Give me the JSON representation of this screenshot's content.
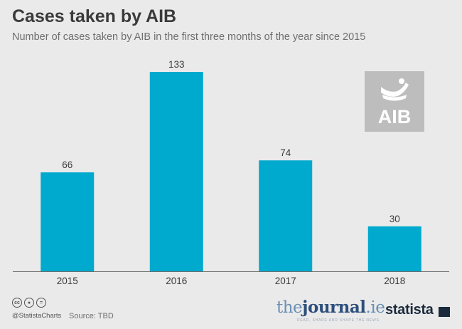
{
  "header": {
    "title": "Cases taken by AIB",
    "subtitle": "Number of cases taken by AIB in the first three months of the year since 2015"
  },
  "chart_data": {
    "type": "bar",
    "title": "Cases taken by AIB",
    "subtitle": "Number of cases taken by AIB in the first three months of the year since 2015",
    "categories": [
      "2015",
      "2016",
      "2017",
      "2018"
    ],
    "values": [
      66,
      133,
      74,
      30
    ],
    "xlabel": "",
    "ylabel": "",
    "ylim": [
      0,
      133
    ],
    "grid": false,
    "data_labels": true,
    "bar_color": "#00a9ce"
  },
  "logo": {
    "text": "AIB",
    "icon": "aib-ark-logo"
  },
  "footer": {
    "handle": "@StatistaCharts",
    "source": "Source: TBD",
    "license_icons": [
      "cc-icon",
      "by-icon",
      "nd-icon"
    ],
    "partner_brand": {
      "prefix": "the",
      "main": "journal",
      "suffix": ".ie",
      "tagline": "READ, SHARE AND SHAPE THE NEWS"
    },
    "brand": "statista"
  },
  "colors": {
    "background": "#eaeaea",
    "bar": "#00a9ce",
    "text": "#3a3a3a"
  }
}
